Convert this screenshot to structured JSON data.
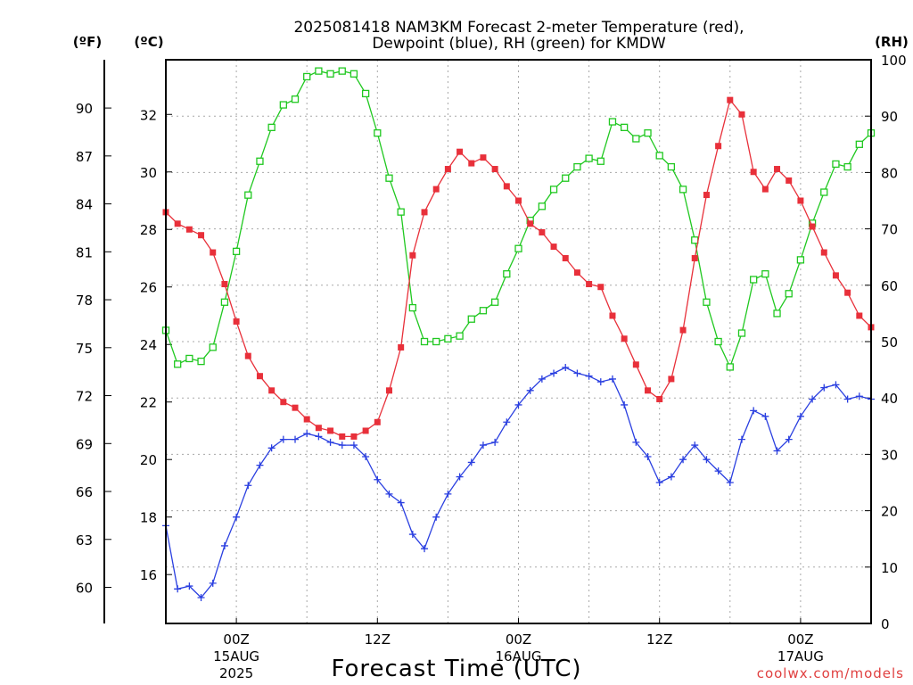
{
  "chart_data": {
    "type": "line",
    "title_line1": "2025081418 NAM3KM Forecast 2-meter Temperature (red),",
    "title_line2": "Dewpoint (blue), RH (green) for KMDW",
    "xlabel": "Forecast Time (UTC)",
    "credit": "coolwx.com/models",
    "unit_f": "(ºF)",
    "unit_c": "(ºC)",
    "unit_rh": "(RH)",
    "x_start_hour": 18,
    "x_end_hour": 78,
    "ylim_c": [
      14.3,
      33.9
    ],
    "ylim_rh": [
      0,
      100
    ],
    "f_ticks": [
      60,
      63,
      66,
      69,
      72,
      75,
      78,
      81,
      84,
      87,
      90
    ],
    "c_ticks": [
      16,
      18,
      20,
      22,
      24,
      26,
      28,
      30,
      32
    ],
    "rh_ticks": [
      0,
      10,
      20,
      30,
      40,
      50,
      60,
      70,
      80,
      90,
      100
    ],
    "x_ticks": [
      {
        "hour": 24,
        "label1": "00Z",
        "label2": "15AUG",
        "label3": "2025"
      },
      {
        "hour": 36,
        "label1": "12Z",
        "label2": "",
        "label3": ""
      },
      {
        "hour": 48,
        "label1": "00Z",
        "label2": "16AUG",
        "label3": ""
      },
      {
        "hour": 60,
        "label1": "12Z",
        "label2": "",
        "label3": ""
      },
      {
        "hour": 72,
        "label1": "00Z",
        "label2": "17AUG",
        "label3": ""
      }
    ],
    "colors": {
      "temperature": "#e8303a",
      "dewpoint": "#2a3fe0",
      "rh": "#20c820",
      "grid": "#a8a8a8"
    },
    "x_hours": [
      18,
      19,
      20,
      21,
      22,
      23,
      24,
      25,
      26,
      27,
      28,
      29,
      30,
      31,
      32,
      33,
      34,
      35,
      36,
      37,
      38,
      39,
      40,
      41,
      42,
      43,
      44,
      45,
      46,
      47,
      48,
      49,
      50,
      51,
      52,
      53,
      54,
      55,
      56,
      57,
      58,
      59,
      60,
      61,
      62,
      63,
      64,
      65,
      66,
      67,
      68,
      69,
      70,
      71,
      72,
      73,
      74,
      75,
      76,
      77,
      78
    ],
    "series": [
      {
        "name": "Temperature",
        "unit": "C",
        "values": [
          28.6,
          28.2,
          28.0,
          27.8,
          27.2,
          26.1,
          24.8,
          23.6,
          22.9,
          22.4,
          22.0,
          21.8,
          21.4,
          21.1,
          21.0,
          20.8,
          20.8,
          21.0,
          21.3,
          22.4,
          23.9,
          27.1,
          28.6,
          29.4,
          30.1,
          30.7,
          30.3,
          30.5,
          30.1,
          29.5,
          29.0,
          28.2,
          27.9,
          27.4,
          27.0,
          26.5,
          26.1,
          26.0,
          25.0,
          24.2,
          23.3,
          22.4,
          22.1,
          22.8,
          24.5,
          27.0,
          29.2,
          30.9,
          32.5,
          32.0,
          30.0,
          29.4,
          30.1,
          29.7,
          29.0,
          28.1,
          27.2,
          26.4,
          25.8,
          25.0,
          24.6
        ]
      },
      {
        "name": "Dewpoint",
        "unit": "C",
        "values": [
          17.7,
          15.5,
          15.6,
          15.2,
          15.7,
          17.0,
          18.0,
          19.1,
          19.8,
          20.4,
          20.7,
          20.7,
          20.9,
          20.8,
          20.6,
          20.5,
          20.5,
          20.1,
          19.3,
          18.8,
          18.5,
          17.4,
          16.9,
          18.0,
          18.8,
          19.4,
          19.9,
          20.5,
          20.6,
          21.3,
          21.9,
          22.4,
          22.8,
          23.0,
          23.2,
          23.0,
          22.9,
          22.7,
          22.8,
          21.9,
          20.6,
          20.1,
          19.2,
          19.4,
          20.0,
          20.5,
          20.0,
          19.6,
          19.2,
          20.7,
          21.7,
          21.5,
          20.3,
          20.7,
          21.5,
          22.1,
          22.5,
          22.6,
          22.1,
          22.2,
          22.1
        ]
      },
      {
        "name": "RH",
        "unit": "%",
        "values": [
          52,
          46,
          47,
          46.5,
          49,
          57,
          66,
          76,
          82,
          88,
          92,
          93,
          97,
          98,
          97.5,
          98,
          97.5,
          94,
          87,
          79,
          73,
          56,
          50,
          50,
          50.5,
          51,
          54,
          55.5,
          57,
          62,
          66.5,
          71.5,
          74,
          77,
          79,
          81,
          82.5,
          82,
          89,
          88,
          86,
          87,
          83,
          81,
          77,
          68,
          57,
          50,
          45.5,
          51.5,
          61,
          62,
          55,
          58.5,
          64.5,
          71,
          76.5,
          81.5,
          81,
          85,
          87
        ]
      }
    ]
  }
}
